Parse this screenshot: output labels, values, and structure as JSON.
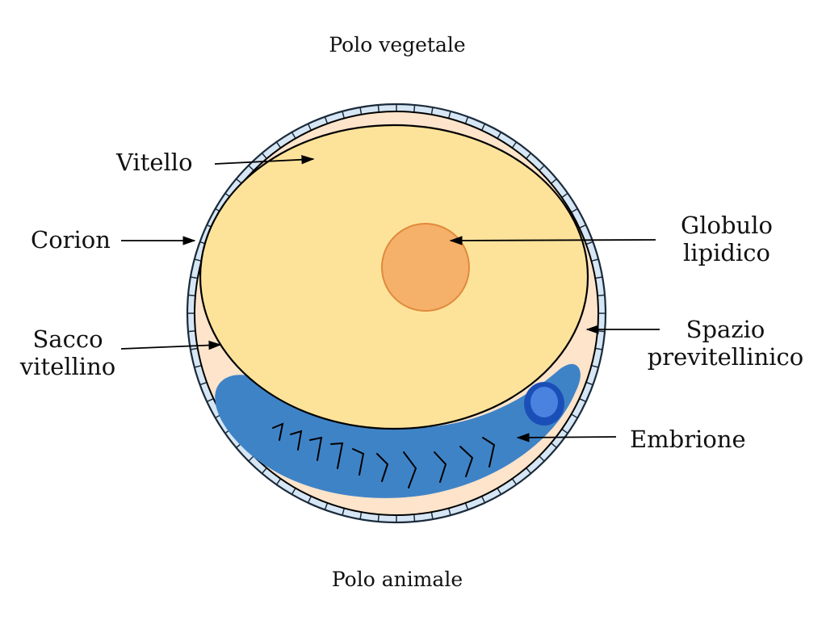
{
  "poles": {
    "vegetal": "Polo vegetale",
    "animal": "Polo animale"
  },
  "labels": {
    "vitello": "Vitello",
    "corion": "Corion",
    "sacco_line1": "Sacco",
    "sacco_line2": "vitellino",
    "globulo_line1": "Globulo",
    "globulo_line2": "lipidico",
    "spazio_line1": "Spazio",
    "spazio_line2": "previtellinico",
    "embrione": "Embrione"
  },
  "colors": {
    "chorion_fill": "#d6e6f4",
    "chorion_stroke": "#1a2a3a",
    "perivitelline": "#fde4ca",
    "yolk": "#fde39a",
    "oil_globule": "#f5b06a",
    "oil_globule_stroke": "#e08a3c",
    "embryo": "#3f83c7",
    "eye_outer": "#1b4fb8",
    "eye_inner": "#4a82e0",
    "line": "#000000"
  }
}
